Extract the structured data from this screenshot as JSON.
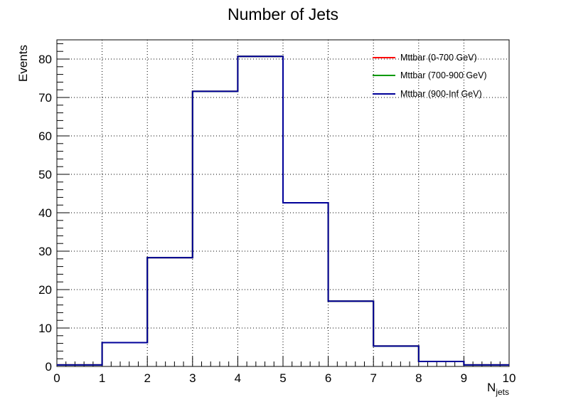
{
  "chart_data": {
    "type": "step-histogram",
    "title": "Number of Jets",
    "xlabel": "N",
    "xlabel_subscript": "jets",
    "ylabel": "Events",
    "xlim": [
      0,
      10
    ],
    "ylim": [
      0,
      85
    ],
    "x_ticks": [
      0,
      1,
      2,
      3,
      4,
      5,
      6,
      7,
      8,
      9,
      10
    ],
    "y_ticks": [
      0,
      10,
      20,
      30,
      40,
      50,
      60,
      70,
      80
    ],
    "grid": true,
    "legend_position": "top-right",
    "bin_edges": [
      0,
      1,
      2,
      3,
      4,
      5,
      6,
      7,
      8,
      9,
      10
    ],
    "series": [
      {
        "name": "Mttbar (0-700 GeV)",
        "color": "#ff0000",
        "values": [
          0.4,
          6.2,
          28.3,
          71.6,
          80.7,
          42.6,
          17.0,
          5.3,
          1.3,
          0.4
        ]
      },
      {
        "name": "Mttbar (700-900 GeV)",
        "color": "#009900",
        "values": [
          0.4,
          6.2,
          28.3,
          71.6,
          80.7,
          42.6,
          17.0,
          5.3,
          1.3,
          0.4
        ]
      },
      {
        "name": "Mttbar (900-Inf GeV)",
        "color": "#000099",
        "values": [
          0.4,
          6.2,
          28.3,
          71.6,
          80.7,
          42.6,
          17.0,
          5.3,
          1.3,
          0.4
        ]
      }
    ]
  }
}
